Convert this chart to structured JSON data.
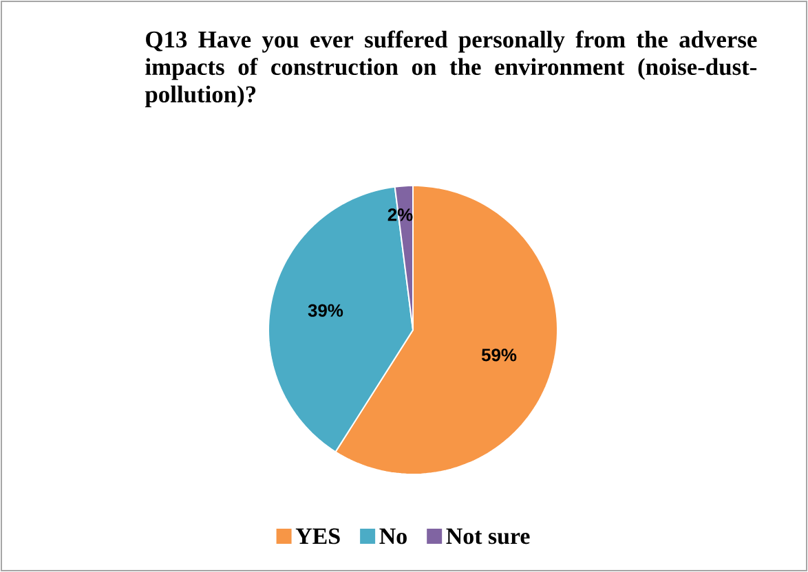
{
  "chart_data": {
    "type": "pie",
    "title": "Q13 Have you ever suffered personally from the adverse impacts of construction on the environment (noise-dust-pollution)?",
    "categories": [
      "YES",
      "No",
      "Not sure"
    ],
    "values": [
      59,
      39,
      2
    ],
    "colors": [
      "#f79646",
      "#4bacc6",
      "#8064a2"
    ],
    "value_labels": [
      "59%",
      "39%",
      "2%"
    ],
    "legend": "bottom"
  }
}
